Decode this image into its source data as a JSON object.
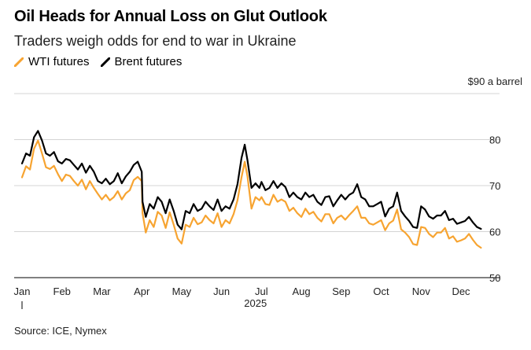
{
  "header": {
    "title": "Oil Heads for Annual Loss on Glut Outlook",
    "subtitle": "Traders weigh odds for end to war in Ukraine"
  },
  "legend": [
    {
      "label": "WTI futures",
      "color": "#f7a431"
    },
    {
      "label": "Brent futures",
      "color": "#000000"
    }
  ],
  "source": "Source: ICE, Nymex",
  "chart_data": {
    "type": "line",
    "title": "Oil Heads for Annual Loss on Glut Outlook",
    "subtitle": "Traders weigh odds for end to war in Ukraine",
    "y_unit_label": "$90 a barrel",
    "ylim": [
      50,
      90
    ],
    "y_ticks": [
      50,
      60,
      70,
      80
    ],
    "y_tick_labels": [
      "50",
      "60",
      "70",
      "80"
    ],
    "xlim": [
      0,
      11.7
    ],
    "x_ticks": [
      0,
      1,
      2,
      3,
      4,
      5,
      6,
      7,
      8,
      9,
      10,
      11
    ],
    "x_tick_labels": [
      "Jan",
      "Feb",
      "Mar",
      "Apr",
      "May",
      "Jun",
      "Jul",
      "Aug",
      "Sep",
      "Oct",
      "Nov",
      "Dec"
    ],
    "year_label": "2025",
    "grid": true,
    "legend_position": "top-left",
    "x": [
      0.0,
      0.1,
      0.2,
      0.3,
      0.4,
      0.5,
      0.6,
      0.7,
      0.8,
      0.9,
      1.0,
      1.1,
      1.2,
      1.3,
      1.4,
      1.5,
      1.6,
      1.7,
      1.8,
      1.9,
      2.0,
      2.1,
      2.2,
      2.3,
      2.4,
      2.5,
      2.6,
      2.7,
      2.8,
      2.9,
      3.0,
      3.02,
      3.1,
      3.2,
      3.3,
      3.4,
      3.5,
      3.6,
      3.7,
      3.8,
      3.9,
      4.0,
      4.1,
      4.2,
      4.3,
      4.4,
      4.5,
      4.6,
      4.7,
      4.8,
      4.9,
      5.0,
      5.1,
      5.2,
      5.3,
      5.4,
      5.5,
      5.58,
      5.65,
      5.75,
      5.85,
      5.95,
      6.0,
      6.1,
      6.2,
      6.3,
      6.4,
      6.5,
      6.6,
      6.7,
      6.8,
      6.9,
      7.0,
      7.1,
      7.2,
      7.3,
      7.4,
      7.5,
      7.6,
      7.7,
      7.8,
      7.9,
      8.0,
      8.1,
      8.2,
      8.3,
      8.4,
      8.5,
      8.6,
      8.7,
      8.8,
      8.9,
      9.0,
      9.1,
      9.2,
      9.3,
      9.4,
      9.5,
      9.6,
      9.7,
      9.8,
      9.9,
      10.0,
      10.1,
      10.2,
      10.3,
      10.4,
      10.5,
      10.6,
      10.7,
      10.8,
      10.9,
      11.0,
      11.1,
      11.2,
      11.3,
      11.4,
      11.5
    ],
    "series": [
      {
        "name": "WTI futures",
        "color": "#f7a431",
        "values": [
          71.8,
          74.2,
          73.5,
          78.0,
          79.8,
          77.0,
          74.0,
          73.6,
          74.3,
          72.5,
          71.0,
          72.4,
          72.1,
          71.0,
          70.0,
          71.3,
          69.2,
          71.0,
          69.5,
          68.2,
          67.0,
          68.0,
          66.8,
          67.5,
          68.8,
          67.0,
          68.3,
          69.0,
          71.2,
          71.9,
          71.0,
          64.0,
          59.8,
          62.5,
          61.0,
          64.3,
          63.5,
          60.8,
          64.2,
          61.5,
          58.5,
          57.4,
          61.5,
          61.0,
          63.0,
          61.6,
          62.0,
          63.5,
          62.5,
          61.8,
          64.0,
          61.0,
          62.5,
          61.8,
          63.8,
          66.8,
          71.8,
          75.2,
          72.0,
          65.0,
          67.5,
          66.8,
          67.5,
          66.0,
          65.8,
          68.0,
          66.5,
          67.0,
          66.5,
          64.5,
          65.2,
          64.0,
          63.2,
          65.0,
          63.8,
          64.3,
          63.0,
          62.2,
          63.8,
          63.8,
          61.8,
          63.0,
          63.5,
          62.6,
          63.6,
          64.5,
          65.5,
          63.0,
          63.0,
          61.8,
          61.5,
          62.0,
          62.5,
          60.3,
          61.8,
          62.4,
          64.8,
          60.5,
          59.8,
          58.8,
          57.3,
          57.1,
          61.0,
          60.8,
          59.5,
          58.8,
          59.8,
          59.8,
          60.8,
          58.5,
          59.0,
          57.8,
          58.1,
          58.5,
          59.5,
          58.2,
          57.1,
          56.5
        ]
      },
      {
        "name": "Brent futures",
        "color": "#000000",
        "values": [
          74.8,
          77.0,
          76.5,
          80.5,
          81.9,
          79.8,
          77.0,
          76.5,
          77.3,
          75.3,
          74.8,
          75.8,
          75.5,
          74.5,
          73.5,
          74.8,
          72.8,
          74.3,
          73.0,
          71.0,
          70.5,
          71.5,
          70.3,
          71.0,
          72.7,
          70.5,
          72.0,
          73.0,
          74.5,
          75.2,
          73.0,
          66.5,
          63.2,
          66.0,
          65.0,
          67.5,
          66.5,
          64.0,
          67.0,
          64.5,
          61.5,
          60.5,
          64.5,
          64.0,
          66.0,
          64.5,
          65.0,
          66.5,
          65.5,
          64.7,
          67.0,
          64.5,
          65.5,
          65.0,
          67.0,
          70.3,
          76.0,
          78.9,
          75.5,
          69.5,
          70.5,
          69.5,
          70.8,
          69.0,
          69.5,
          71.0,
          69.5,
          70.5,
          69.7,
          67.5,
          68.5,
          67.5,
          67.0,
          68.5,
          67.5,
          68.0,
          66.5,
          65.8,
          67.5,
          67.7,
          65.5,
          66.8,
          68.0,
          67.0,
          68.0,
          68.5,
          70.3,
          67.5,
          67.0,
          65.5,
          65.5,
          66.0,
          66.5,
          63.3,
          65.0,
          65.5,
          68.5,
          64.5,
          63.3,
          62.3,
          61.0,
          60.8,
          65.5,
          64.8,
          63.3,
          62.8,
          63.5,
          63.5,
          64.5,
          62.5,
          62.8,
          61.7,
          62.0,
          62.3,
          63.2,
          62.0,
          61.0,
          60.6
        ]
      }
    ]
  }
}
